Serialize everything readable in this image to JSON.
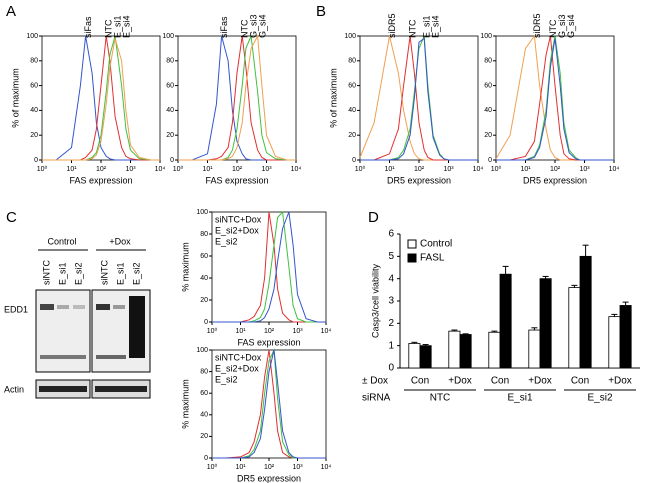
{
  "panel_labels": [
    "A",
    "B",
    "C",
    "D"
  ],
  "blot": {
    "groups": [
      "Control",
      "+Dox"
    ],
    "lanes": [
      "siNTC",
      "E_si1",
      "E_si2",
      "siNTC",
      "E_si1",
      "E_si2"
    ],
    "rows": [
      "EDD1",
      "Actin"
    ]
  },
  "chart_data": [
    {
      "type": "line",
      "xlog": true,
      "legend": "top",
      "xlabel": "FAS expression",
      "ylabel": "% of maximum",
      "x": [
        1,
        3,
        10,
        20,
        30,
        50,
        70,
        100,
        150,
        200,
        300,
        500,
        700,
        1000,
        2000,
        5000,
        10000
      ],
      "xlim": [
        1,
        10000
      ],
      "ylim": [
        0,
        100
      ],
      "xticks": [
        {
          "value": 1,
          "label": "10⁰"
        },
        {
          "value": 10,
          "label": "10¹"
        },
        {
          "value": 100,
          "label": "10²"
        },
        {
          "value": 1000,
          "label": "10³"
        },
        {
          "value": 10000,
          "label": "10⁴"
        }
      ],
      "yticks": [
        0,
        20,
        40,
        60,
        80,
        100
      ],
      "series": [
        {
          "name": "siFas",
          "color": "#3355cc",
          "values": [
            0,
            0,
            10,
            60,
            100,
            70,
            30,
            10,
            3,
            1,
            0,
            0,
            0,
            0,
            0,
            0,
            0
          ]
        },
        {
          "name": "NTC",
          "color": "#e03030",
          "values": [
            0,
            0,
            0,
            0,
            2,
            8,
            25,
            60,
            100,
            80,
            35,
            10,
            3,
            1,
            0,
            0,
            0
          ]
        },
        {
          "name": "E_si1",
          "color": "#40c040",
          "values": [
            0,
            0,
            0,
            0,
            0,
            2,
            6,
            20,
            55,
            85,
            100,
            60,
            25,
            8,
            1,
            0,
            0
          ]
        },
        {
          "name": "E_si4",
          "color": "#f0a050",
          "values": [
            0,
            0,
            0,
            0,
            0,
            1,
            4,
            15,
            45,
            75,
            98,
            80,
            40,
            12,
            2,
            0,
            0
          ]
        }
      ]
    },
    {
      "type": "line",
      "xlog": true,
      "legend": "top",
      "xlabel": "FAS expression",
      "x": [
        1,
        3,
        10,
        20,
        30,
        50,
        70,
        100,
        150,
        200,
        300,
        500,
        700,
        1000,
        2000,
        5000,
        10000
      ],
      "xlim": [
        1,
        10000
      ],
      "ylim": [
        0,
        100
      ],
      "xticks": [
        {
          "value": 1,
          "label": "10⁰"
        },
        {
          "value": 10,
          "label": "10¹"
        },
        {
          "value": 100,
          "label": "10²"
        },
        {
          "value": 1000,
          "label": "10³"
        },
        {
          "value": 10000,
          "label": "10⁴"
        }
      ],
      "yticks": [
        0,
        20,
        40,
        60,
        80,
        100
      ],
      "series": [
        {
          "name": "siFas",
          "color": "#3355cc",
          "values": [
            0,
            0,
            5,
            45,
            100,
            80,
            40,
            15,
            5,
            1,
            0,
            0,
            0,
            0,
            0,
            0,
            0
          ]
        },
        {
          "name": "NTC",
          "color": "#e03030",
          "values": [
            0,
            0,
            0,
            1,
            3,
            10,
            30,
            70,
            100,
            75,
            30,
            8,
            2,
            0,
            0,
            0,
            0
          ]
        },
        {
          "name": "G_si3",
          "color": "#40c040",
          "values": [
            0,
            0,
            0,
            0,
            0,
            2,
            8,
            25,
            60,
            90,
            100,
            55,
            20,
            6,
            1,
            0,
            0
          ]
        },
        {
          "name": "G_si4",
          "color": "#f0a050",
          "values": [
            0,
            0,
            0,
            0,
            0,
            1,
            3,
            10,
            30,
            60,
            90,
            100,
            60,
            20,
            3,
            0,
            0
          ]
        }
      ]
    },
    {
      "type": "line",
      "xlog": true,
      "legend": "top",
      "xlabel": "DR5 expression",
      "ylabel": "% of maximum",
      "x": [
        1,
        3,
        10,
        20,
        30,
        50,
        70,
        100,
        150,
        200,
        300,
        500,
        700,
        1000,
        2000,
        5000,
        10000
      ],
      "xlim": [
        1,
        10000
      ],
      "ylim": [
        0,
        100
      ],
      "xticks": [
        {
          "value": 1,
          "label": "10⁰"
        },
        {
          "value": 10,
          "label": "10¹"
        },
        {
          "value": 100,
          "label": "10²"
        },
        {
          "value": 1000,
          "label": "10³"
        },
        {
          "value": 10000,
          "label": "10⁴"
        }
      ],
      "yticks": [
        0,
        20,
        40,
        60,
        80,
        100
      ],
      "series": [
        {
          "name": "siDR5",
          "color": "#f0a050",
          "values": [
            2,
            30,
            100,
            70,
            40,
            15,
            5,
            1,
            0,
            0,
            0,
            0,
            0,
            0,
            0,
            0,
            0
          ]
        },
        {
          "name": "NTC",
          "color": "#e03030",
          "values": [
            0,
            0,
            5,
            25,
            60,
            100,
            70,
            30,
            8,
            2,
            0,
            0,
            0,
            0,
            0,
            0,
            0
          ]
        },
        {
          "name": "E_si1",
          "color": "#40c040",
          "values": [
            0,
            0,
            0,
            2,
            8,
            25,
            55,
            90,
            100,
            60,
            20,
            5,
            1,
            0,
            0,
            0,
            0
          ]
        },
        {
          "name": "E_si4",
          "color": "#3355cc",
          "values": [
            0,
            0,
            0,
            1,
            5,
            20,
            50,
            95,
            98,
            55,
            18,
            4,
            1,
            0,
            0,
            0,
            0
          ]
        }
      ]
    },
    {
      "type": "line",
      "xlog": true,
      "legend": "top",
      "xlabel": "DR5 expression",
      "x": [
        1,
        3,
        10,
        20,
        30,
        50,
        70,
        100,
        150,
        200,
        300,
        500,
        700,
        1000,
        2000,
        5000,
        10000
      ],
      "xlim": [
        1,
        10000
      ],
      "ylim": [
        0,
        100
      ],
      "xticks": [
        {
          "value": 1,
          "label": "10⁰"
        },
        {
          "value": 10,
          "label": "10¹"
        },
        {
          "value": 100,
          "label": "10²"
        },
        {
          "value": 1000,
          "label": "10³"
        },
        {
          "value": 10000,
          "label": "10⁴"
        }
      ],
      "yticks": [
        0,
        20,
        40,
        60,
        80,
        100
      ],
      "series": [
        {
          "name": "siDR5",
          "color": "#f0a050",
          "values": [
            1,
            20,
            90,
            100,
            60,
            25,
            8,
            2,
            0,
            0,
            0,
            0,
            0,
            0,
            0,
            0,
            0
          ]
        },
        {
          "name": "NTC",
          "color": "#e03030",
          "values": [
            0,
            0,
            3,
            15,
            45,
            85,
            100,
            60,
            20,
            5,
            1,
            0,
            0,
            0,
            0,
            0,
            0
          ]
        },
        {
          "name": "G_si3",
          "color": "#40c040",
          "values": [
            0,
            0,
            0,
            3,
            12,
            40,
            80,
            100,
            70,
            30,
            8,
            2,
            0,
            0,
            0,
            0,
            0
          ]
        },
        {
          "name": "G_si4",
          "color": "#3355cc",
          "values": [
            0,
            0,
            0,
            2,
            10,
            35,
            75,
            98,
            60,
            25,
            6,
            1,
            0,
            0,
            0,
            0,
            0
          ]
        }
      ]
    },
    {
      "type": "line",
      "xlog": true,
      "legend": "top-left",
      "xlabel": "FAS expression",
      "ylabel": "% maximum",
      "x": [
        1,
        3,
        10,
        20,
        30,
        50,
        70,
        100,
        150,
        200,
        300,
        500,
        700,
        1000,
        2000,
        5000,
        10000
      ],
      "xlim": [
        1,
        10000
      ],
      "ylim": [
        0,
        100
      ],
      "xticks": [
        {
          "value": 1,
          "label": "10⁰"
        },
        {
          "value": 10,
          "label": "10¹"
        },
        {
          "value": 100,
          "label": "10²"
        },
        {
          "value": 1000,
          "label": "10³"
        },
        {
          "value": 10000,
          "label": "10⁴"
        }
      ],
      "yticks": [
        0,
        20,
        40,
        60,
        80,
        100
      ],
      "series": [
        {
          "name": "siNTC+Dox",
          "color": "#e03030",
          "values": [
            0,
            0,
            0,
            2,
            5,
            15,
            40,
            100,
            70,
            30,
            8,
            2,
            0,
            0,
            0,
            0,
            0
          ]
        },
        {
          "name": "E_si2+Dox",
          "color": "#40c040",
          "values": [
            0,
            0,
            0,
            0,
            1,
            4,
            12,
            35,
            70,
            95,
            100,
            50,
            15,
            3,
            0,
            0,
            0
          ]
        },
        {
          "name": "E_si2",
          "color": "#3355cc",
          "values": [
            0,
            0,
            0,
            0,
            0,
            1,
            4,
            12,
            30,
            55,
            85,
            100,
            70,
            25,
            3,
            0,
            0
          ]
        }
      ]
    },
    {
      "type": "line",
      "xlog": true,
      "legend": "top-left",
      "xlabel": "DR5 expression",
      "ylabel": "% maximum",
      "x": [
        1,
        3,
        10,
        20,
        30,
        50,
        70,
        100,
        150,
        200,
        300,
        500,
        700,
        1000,
        2000,
        5000,
        10000
      ],
      "xlim": [
        1,
        10000
      ],
      "ylim": [
        0,
        100
      ],
      "xticks": [
        {
          "value": 1,
          "label": "10⁰"
        },
        {
          "value": 10,
          "label": "10¹"
        },
        {
          "value": 100,
          "label": "10²"
        },
        {
          "value": 1000,
          "label": "10³"
        },
        {
          "value": 10000,
          "label": "10⁴"
        }
      ],
      "yticks": [
        0,
        20,
        40,
        60,
        80,
        100
      ],
      "series": [
        {
          "name": "siNTC+Dox",
          "color": "#e03030",
          "values": [
            0,
            0,
            1,
            5,
            15,
            40,
            75,
            100,
            60,
            25,
            5,
            1,
            0,
            0,
            0,
            0,
            0
          ]
        },
        {
          "name": "E_si2+Dox",
          "color": "#40c040",
          "values": [
            0,
            0,
            0,
            2,
            8,
            25,
            60,
            90,
            100,
            55,
            15,
            3,
            0,
            0,
            0,
            0,
            0
          ]
        },
        {
          "name": "E_si2",
          "color": "#3355cc",
          "values": [
            0,
            0,
            0,
            1,
            5,
            18,
            45,
            80,
            100,
            70,
            25,
            5,
            1,
            0,
            0,
            0,
            0
          ]
        }
      ]
    },
    {
      "type": "bar",
      "legend": "top-left",
      "ylabel": "Casp3/cell viability",
      "row_labels": [
        "± Dox",
        "siRNA"
      ],
      "categories": [
        "Con",
        "+Dox",
        "Con",
        "+Dox",
        "Con",
        "+Dox"
      ],
      "groups": [
        "NTC",
        "E_si1",
        "E_si2"
      ],
      "ylim": [
        0,
        6
      ],
      "yticks": [
        0,
        1,
        2,
        3,
        4,
        5,
        6
      ],
      "series": [
        {
          "name": "Control",
          "color": "#ffffff",
          "values": [
            1.1,
            1.65,
            1.6,
            1.7,
            3.6,
            2.3
          ],
          "errors": [
            0.05,
            0.05,
            0.05,
            0.1,
            0.1,
            0.1
          ]
        },
        {
          "name": "FASL",
          "color": "#000000",
          "values": [
            1.0,
            1.5,
            4.2,
            4.0,
            5.0,
            2.8
          ],
          "errors": [
            0.05,
            0.03,
            0.35,
            0.1,
            0.5,
            0.15
          ]
        }
      ]
    }
  ]
}
